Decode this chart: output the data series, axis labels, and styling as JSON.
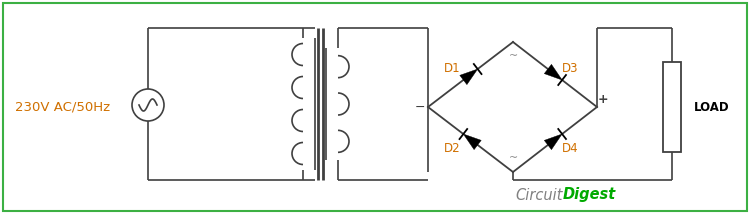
{
  "bg_color": "#ffffff",
  "border_color": "#3cb043",
  "line_color": "#404040",
  "diode_color": "#000000",
  "label_color_orange": "#d07000",
  "label_color_gray": "#808080",
  "label_color_green": "#00aa00",
  "ac_label": "230V AC/50Hz",
  "d1_label": "D1",
  "d2_label": "D2",
  "d3_label": "D3",
  "d4_label": "D4",
  "load_label": "LOAD",
  "brand_circuit": "Circuit",
  "brand_digest": "Digest"
}
